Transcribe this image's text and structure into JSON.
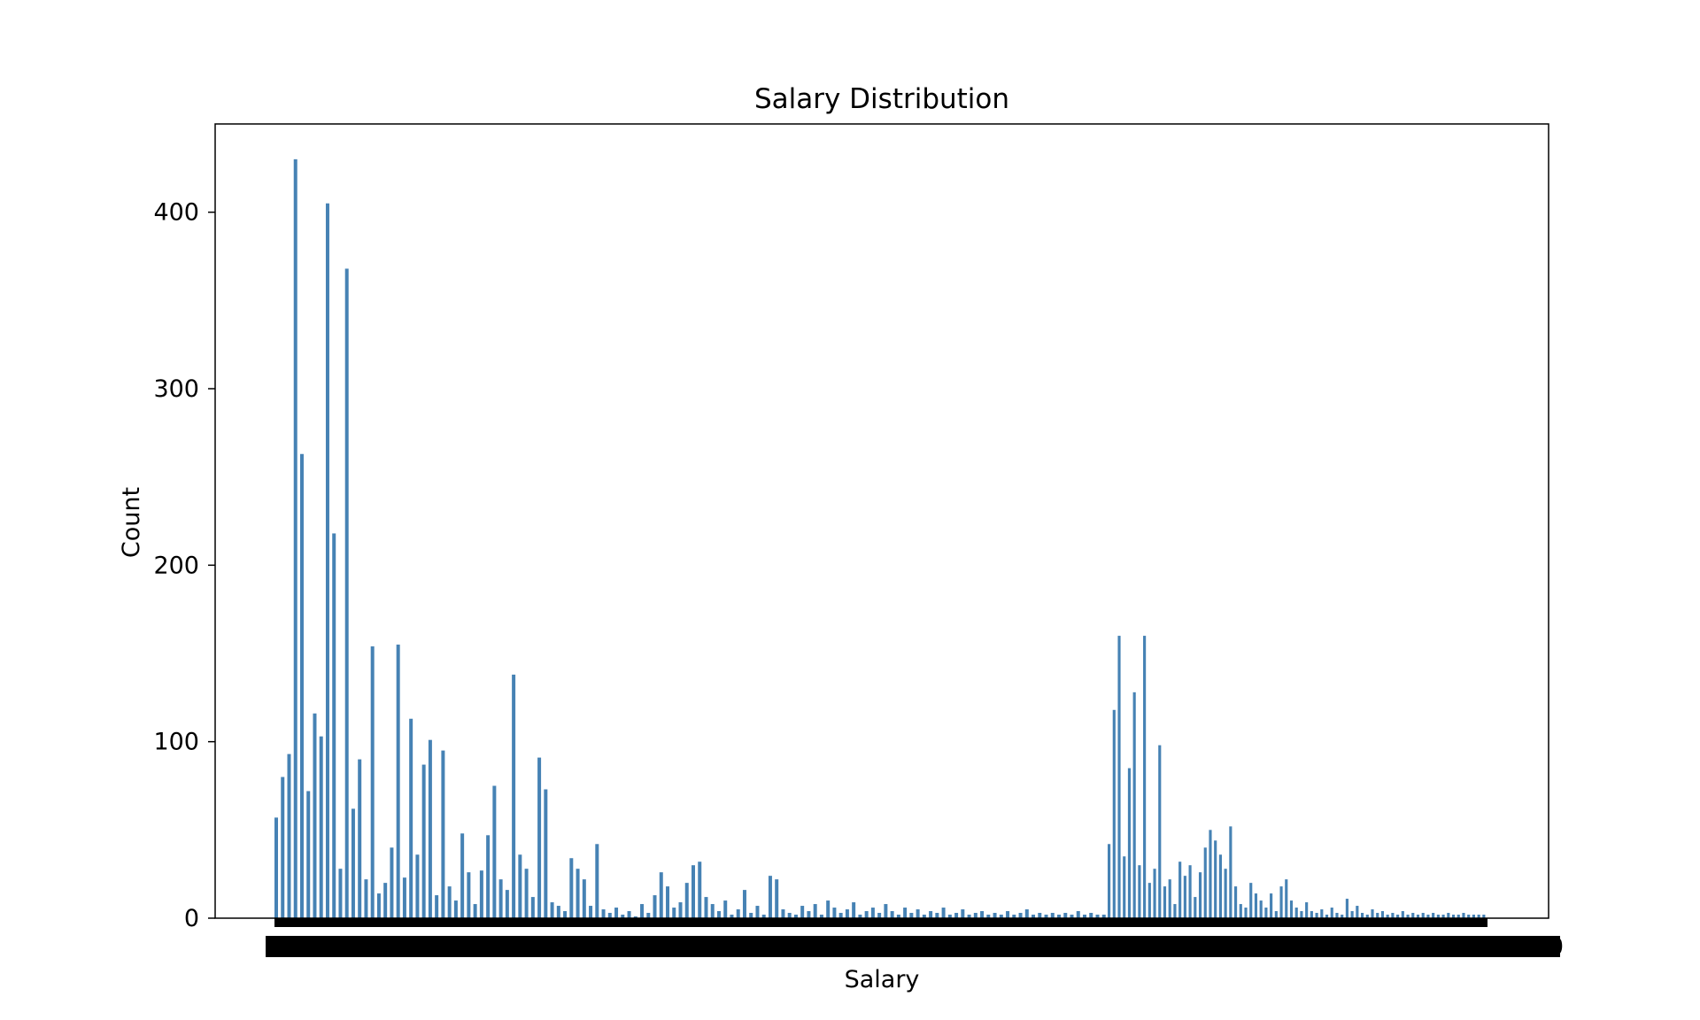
{
  "chart_data": {
    "type": "bar",
    "title": "Salary Distribution",
    "xlabel": "Salary",
    "ylabel": "Count",
    "ylim": [
      0,
      450
    ],
    "yticks": [
      0,
      100,
      200,
      300,
      400
    ],
    "x_tick_labels_note": "x tick labels are heavily overlapping and not legible",
    "visible_xtick_fragment": "00",
    "bar_color": "#4682b4",
    "grid": false,
    "legend": "none",
    "cluster_1_values": [
      57,
      80,
      93,
      430,
      263,
      72,
      116,
      103,
      405,
      218,
      28,
      368,
      62,
      90,
      22,
      154,
      14,
      20,
      40,
      155,
      23,
      113,
      36,
      87,
      101,
      13,
      95,
      18,
      10,
      48,
      26,
      8,
      27,
      47,
      75,
      22,
      16,
      138,
      36,
      28,
      12,
      91,
      73,
      9,
      7,
      4,
      34,
      28,
      22,
      7,
      42,
      5,
      3,
      6,
      2,
      4,
      1,
      8,
      3,
      13,
      26,
      18,
      6,
      9,
      20,
      30,
      32,
      12,
      8,
      4,
      10,
      2,
      5,
      16,
      3,
      7,
      2,
      24,
      22,
      5,
      3,
      2,
      7,
      4,
      8,
      2,
      10,
      6,
      3,
      5,
      9,
      2,
      4,
      6,
      3,
      8,
      4,
      2,
      6,
      3,
      5,
      2,
      4,
      3,
      6,
      2,
      3,
      5,
      2,
      3,
      4,
      2,
      3,
      2,
      4,
      2,
      3,
      5,
      2,
      3,
      2,
      3,
      2,
      3,
      2,
      4,
      2,
      3,
      2,
      2
    ],
    "cluster_2_values": [
      42,
      118,
      160,
      35,
      85,
      128,
      30,
      160,
      20,
      28,
      98,
      18,
      22,
      8,
      32,
      24,
      30,
      12,
      26,
      40,
      50,
      44,
      36,
      28,
      52,
      18,
      8,
      6,
      20,
      14,
      10,
      6,
      14,
      4,
      18,
      22,
      10,
      6,
      4,
      9,
      4,
      3,
      5,
      2,
      6,
      3,
      2,
      11,
      4,
      7,
      3,
      2,
      5,
      3,
      4,
      2,
      3,
      2,
      4,
      2,
      3,
      2,
      3,
      2,
      3,
      2,
      2,
      3,
      2,
      2,
      3,
      2,
      2,
      2,
      2
    ]
  }
}
